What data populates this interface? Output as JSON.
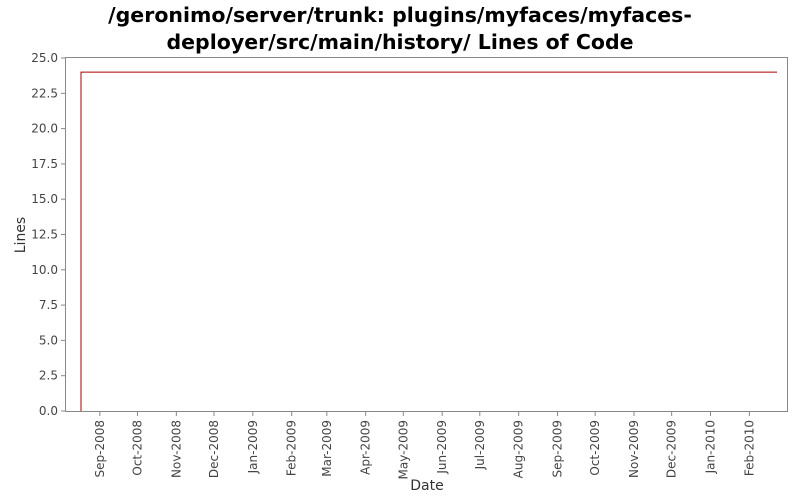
{
  "chart_data": {
    "type": "line",
    "title": "/geronimo/server/trunk: plugins/myfaces/myfaces-deployer/src/main/history/ Lines of Code",
    "title_lines": [
      "/geronimo/server/trunk: plugins/myfaces/myfaces-",
      "deployer/src/main/history/ Lines of Code"
    ],
    "xlabel": "Date",
    "ylabel": "Lines",
    "ylim": [
      0,
      25
    ],
    "yticks": [
      "0.0",
      "2.5",
      "5.0",
      "7.5",
      "10.0",
      "12.5",
      "15.0",
      "17.5",
      "20.0",
      "22.5",
      "25.0"
    ],
    "xlim": [
      "2008-08-05",
      "2010-03-03"
    ],
    "xticks": [
      {
        "label": "Sep-2008",
        "date": "2008-09-01"
      },
      {
        "label": "Oct-2008",
        "date": "2008-10-01"
      },
      {
        "label": "Nov-2008",
        "date": "2008-11-01"
      },
      {
        "label": "Dec-2008",
        "date": "2008-12-01"
      },
      {
        "label": "Jan-2009",
        "date": "2009-01-01"
      },
      {
        "label": "Feb-2009",
        "date": "2009-02-01"
      },
      {
        "label": "Mar-2009",
        "date": "2009-03-01"
      },
      {
        "label": "Apr-2009",
        "date": "2009-04-01"
      },
      {
        "label": "May-2009",
        "date": "2009-05-01"
      },
      {
        "label": "Jun-2009",
        "date": "2009-06-01"
      },
      {
        "label": "Jul-2009",
        "date": "2009-07-01"
      },
      {
        "label": "Aug-2009",
        "date": "2009-08-01"
      },
      {
        "label": "Sep-2009",
        "date": "2009-09-01"
      },
      {
        "label": "Oct-2009",
        "date": "2009-10-01"
      },
      {
        "label": "Nov-2009",
        "date": "2009-11-01"
      },
      {
        "label": "Dec-2009",
        "date": "2009-12-01"
      },
      {
        "label": "Jan-2010",
        "date": "2010-01-01"
      },
      {
        "label": "Feb-2010",
        "date": "2010-02-01"
      }
    ],
    "series": [
      {
        "color": "#aa0000",
        "points": [
          {
            "x": "2008-08-17",
            "y": 0
          },
          {
            "x": "2008-08-17",
            "y": 24
          },
          {
            "x": "2010-02-23",
            "y": 24
          }
        ]
      }
    ],
    "grid": false,
    "legend": "none"
  }
}
